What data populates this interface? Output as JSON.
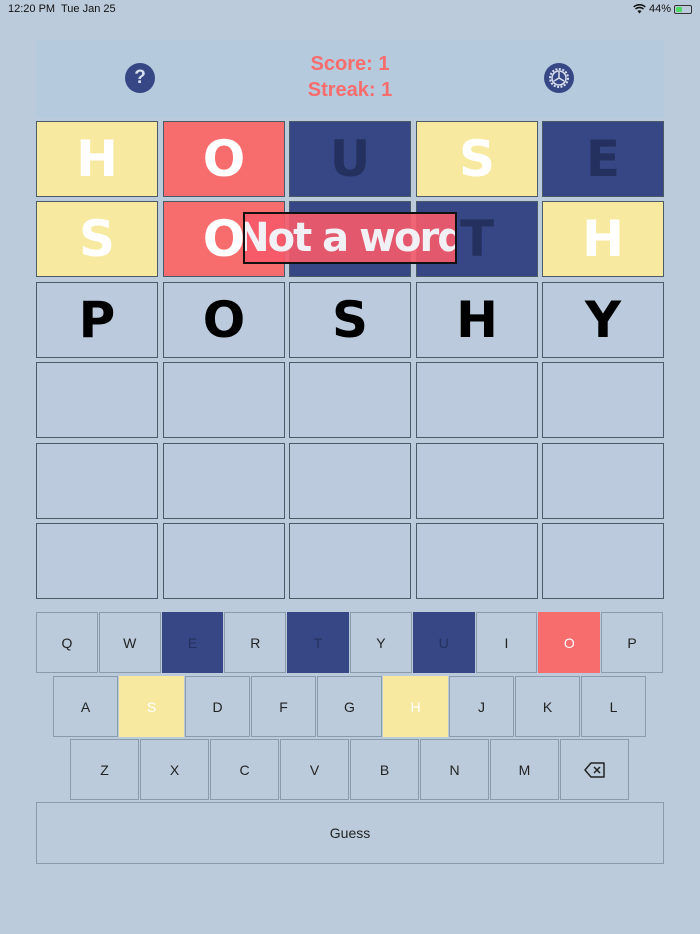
{
  "status_bar": {
    "time": "12:20 PM",
    "date": "Tue Jan 25",
    "battery": "44%",
    "battery_level": 0.44
  },
  "header": {
    "help_icon": "?",
    "score": "Score: 1",
    "streak": "Streak: 1"
  },
  "colors": {
    "background": "#bbcbdc",
    "present": "#f8e9a1",
    "correct": "#f76c6c",
    "absent": "#374785",
    "empty": "#bbcbdd",
    "absent_text": "#24305e"
  },
  "board": [
    [
      {
        "l": "H",
        "s": "present"
      },
      {
        "l": "O",
        "s": "correct"
      },
      {
        "l": "U",
        "s": "absent"
      },
      {
        "l": "S",
        "s": "present"
      },
      {
        "l": "E",
        "s": "absent"
      }
    ],
    [
      {
        "l": "S",
        "s": "present"
      },
      {
        "l": "O",
        "s": "correct"
      },
      {
        "l": "",
        "s": "absent"
      },
      {
        "l": "T",
        "s": "absent"
      },
      {
        "l": "H",
        "s": "present"
      }
    ],
    [
      {
        "l": "P",
        "s": "typed"
      },
      {
        "l": "O",
        "s": "typed"
      },
      {
        "l": "S",
        "s": "typed"
      },
      {
        "l": "H",
        "s": "typed"
      },
      {
        "l": "Y",
        "s": "typed"
      }
    ],
    [
      {
        "l": "",
        "s": "empty"
      },
      {
        "l": "",
        "s": "empty"
      },
      {
        "l": "",
        "s": "empty"
      },
      {
        "l": "",
        "s": "empty"
      },
      {
        "l": "",
        "s": "empty"
      }
    ],
    [
      {
        "l": "",
        "s": "empty"
      },
      {
        "l": "",
        "s": "empty"
      },
      {
        "l": "",
        "s": "empty"
      },
      {
        "l": "",
        "s": "empty"
      },
      {
        "l": "",
        "s": "empty"
      }
    ],
    [
      {
        "l": "",
        "s": "empty"
      },
      {
        "l": "",
        "s": "empty"
      },
      {
        "l": "",
        "s": "empty"
      },
      {
        "l": "",
        "s": "empty"
      },
      {
        "l": "",
        "s": "empty"
      }
    ]
  ],
  "toast": "Not a word",
  "keyboard": {
    "rows": [
      [
        {
          "k": "Q"
        },
        {
          "k": "W"
        },
        {
          "k": "E",
          "s": "absent"
        },
        {
          "k": "R"
        },
        {
          "k": "T",
          "s": "absent"
        },
        {
          "k": "Y"
        },
        {
          "k": "U",
          "s": "absent"
        },
        {
          "k": "I"
        },
        {
          "k": "O",
          "s": "correct"
        },
        {
          "k": "P"
        }
      ],
      [
        {
          "k": "A"
        },
        {
          "k": "S",
          "s": "present"
        },
        {
          "k": "D"
        },
        {
          "k": "F"
        },
        {
          "k": "G"
        },
        {
          "k": "H",
          "s": "present"
        },
        {
          "k": "J"
        },
        {
          "k": "K"
        },
        {
          "k": "L"
        }
      ],
      [
        {
          "k": "Z"
        },
        {
          "k": "X"
        },
        {
          "k": "C"
        },
        {
          "k": "V"
        },
        {
          "k": "B"
        },
        {
          "k": "N"
        },
        {
          "k": "M"
        },
        {
          "k": "",
          "icon": "backspace-icon"
        }
      ]
    ],
    "guess_label": "Guess"
  }
}
